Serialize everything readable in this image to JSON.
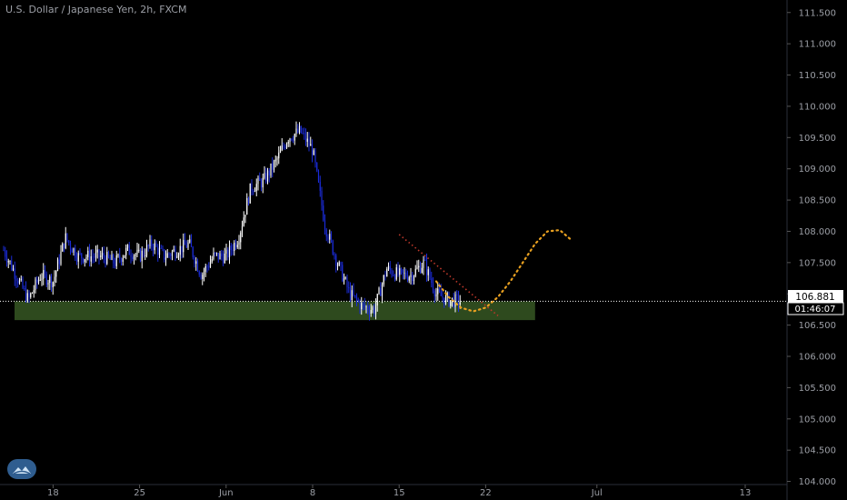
{
  "header": {
    "title": "U.S. Dollar / Japanese Yen, 2h, FXCM"
  },
  "colors": {
    "background": "#000000",
    "up_candle": "#ffffff",
    "down_candle": "#1a2bd8",
    "support_zone": "#2e4a1e",
    "trendline": "#c0392b",
    "projection": "#e8a020",
    "axis_text": "#9c9fa6"
  },
  "price_tag": {
    "price": "106.881",
    "countdown": "01:46:07"
  },
  "chart_data": {
    "type": "candlestick",
    "symbol": "USDJPY",
    "timeframe": "2h",
    "y_ticks": [
      "111.500",
      "111.000",
      "110.500",
      "110.000",
      "109.500",
      "109.000",
      "108.500",
      "108.000",
      "107.500",
      "107.000",
      "106.500",
      "106.000",
      "105.500",
      "105.000",
      "104.500",
      "104.000"
    ],
    "ylim": [
      103.95,
      111.7
    ],
    "x_ticks": [
      "18",
      "25",
      "Jun",
      "8",
      "15",
      "22",
      "Jul",
      "13"
    ],
    "current_price": 106.881,
    "support_zone": {
      "from_day": "May 14",
      "to_day": "Jun 26",
      "low": 106.58,
      "high": 106.88
    },
    "price_path": [
      [
        "May 14",
        107.7
      ],
      [
        "May 15",
        107.3
      ],
      [
        "May 16",
        106.9
      ],
      [
        "May 17",
        107.3
      ],
      [
        "May 18",
        107.2
      ],
      [
        "May 19",
        107.9
      ],
      [
        "May 20",
        107.6
      ],
      [
        "May 21",
        107.6
      ],
      [
        "May 22",
        107.6
      ],
      [
        "May 23",
        107.5
      ],
      [
        "May 24",
        107.7
      ],
      [
        "May 25",
        107.6
      ],
      [
        "May 26",
        107.8
      ],
      [
        "May 27",
        107.6
      ],
      [
        "May 28",
        107.7
      ],
      [
        "May 29",
        107.8
      ],
      [
        "May 30",
        107.3
      ],
      [
        "May 31",
        107.6
      ],
      [
        "Jun 1",
        107.6
      ],
      [
        "Jun 2",
        107.9
      ],
      [
        "Jun 3",
        108.7
      ],
      [
        "Jun 4",
        108.8
      ],
      [
        "Jun 5",
        109.1
      ],
      [
        "Jun 6",
        109.5
      ],
      [
        "Jun 7",
        109.6
      ],
      [
        "Jun 8",
        109.3
      ],
      [
        "Jun 9",
        108.1
      ],
      [
        "Jun 10",
        107.5
      ],
      [
        "Jun 11",
        107.0
      ],
      [
        "Jun 12",
        106.8
      ],
      [
        "Jun 13",
        106.75
      ],
      [
        "Jun 14",
        107.4
      ],
      [
        "Jun 15",
        107.3
      ],
      [
        "Jun 16",
        107.3
      ],
      [
        "Jun 17",
        107.5
      ],
      [
        "Jun 18",
        107.0
      ],
      [
        "Jun 19",
        106.9
      ],
      [
        "Jun 20",
        106.881
      ]
    ],
    "trendline": {
      "from": [
        "Jun 15",
        107.95
      ],
      "to": [
        "Jun 23",
        106.65
      ]
    },
    "projection_path": [
      [
        "Jun 18",
        107.2
      ],
      [
        "Jun 19",
        106.95
      ],
      [
        "Jun 20",
        106.78
      ],
      [
        "Jun 21",
        106.72
      ],
      [
        "Jun 22",
        106.78
      ],
      [
        "Jun 23",
        106.95
      ],
      [
        "Jun 24",
        107.2
      ],
      [
        "Jun 25",
        107.5
      ],
      [
        "Jun 26",
        107.8
      ],
      [
        "Jun 27",
        108.0
      ],
      [
        "Jun 28",
        108.02
      ],
      [
        "Jun 29",
        107.85
      ]
    ]
  }
}
